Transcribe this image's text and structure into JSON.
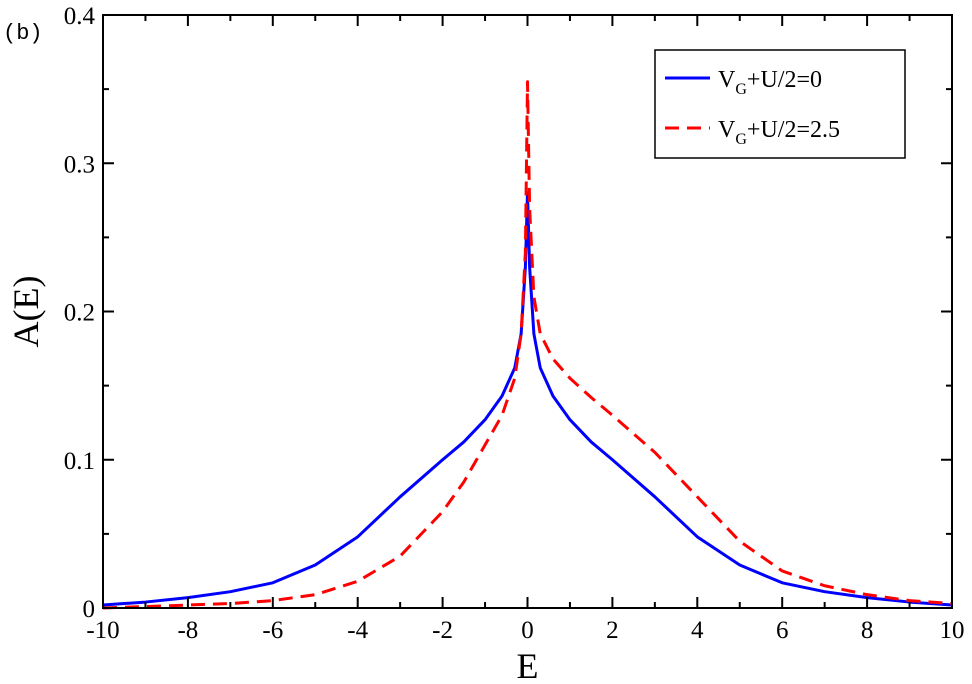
{
  "chart_data": {
    "type": "line",
    "panel_label": "(b)",
    "xlabel": "E",
    "ylabel": "A(E)",
    "xlim": [
      -10,
      10
    ],
    "ylim": [
      0,
      0.4
    ],
    "x_ticks": [
      -10,
      -8,
      -6,
      -4,
      -2,
      0,
      2,
      4,
      6,
      8,
      10
    ],
    "x_tick_labels": [
      "-10",
      "-8",
      "-6",
      "-4",
      "-2",
      "0",
      "2",
      "4",
      "6",
      "8",
      "10"
    ],
    "y_ticks": [
      0,
      0.1,
      0.2,
      0.3,
      0.4
    ],
    "y_tick_labels": [
      "0",
      "0.1",
      "0.2",
      "0.3",
      "0.4"
    ],
    "grid": false,
    "legend_position": "top-right",
    "series": [
      {
        "legend": {
          "main": "V",
          "sub": "G",
          "rest": "+U/2=0"
        },
        "color": "#0000ff",
        "style": "solid",
        "x": [
          -10,
          -9,
          -8,
          -7,
          -6,
          -5,
          -4,
          -3,
          -2,
          -1.5,
          -1,
          -0.6,
          -0.3,
          -0.15,
          -0.05,
          0,
          0.05,
          0.15,
          0.3,
          0.6,
          1,
          1.5,
          2,
          3,
          4,
          5,
          6,
          7,
          8,
          9,
          10
        ],
        "y": [
          0.002,
          0.004,
          0.007,
          0.011,
          0.017,
          0.029,
          0.048,
          0.075,
          0.1,
          0.112,
          0.127,
          0.143,
          0.162,
          0.185,
          0.23,
          0.28,
          0.23,
          0.185,
          0.162,
          0.143,
          0.127,
          0.112,
          0.1,
          0.075,
          0.048,
          0.029,
          0.017,
          0.011,
          0.007,
          0.004,
          0.002
        ]
      },
      {
        "legend": {
          "main": "V",
          "sub": "G",
          "rest": "+U/2=2.5"
        },
        "color": "#ff0000",
        "style": "dashed",
        "x": [
          -10,
          -9,
          -8,
          -7,
          -6,
          -5,
          -4,
          -3,
          -2,
          -1.5,
          -1,
          -0.6,
          -0.3,
          -0.15,
          -0.05,
          0,
          0.05,
          0.15,
          0.3,
          0.6,
          1,
          1.5,
          2,
          3,
          4,
          5,
          6,
          7,
          8,
          9,
          10
        ],
        "y": [
          0.0,
          0.001,
          0.002,
          0.003,
          0.005,
          0.009,
          0.018,
          0.035,
          0.065,
          0.085,
          0.11,
          0.13,
          0.155,
          0.185,
          0.24,
          0.355,
          0.27,
          0.21,
          0.185,
          0.168,
          0.155,
          0.142,
          0.13,
          0.105,
          0.075,
          0.045,
          0.025,
          0.015,
          0.009,
          0.005,
          0.003
        ]
      }
    ]
  }
}
